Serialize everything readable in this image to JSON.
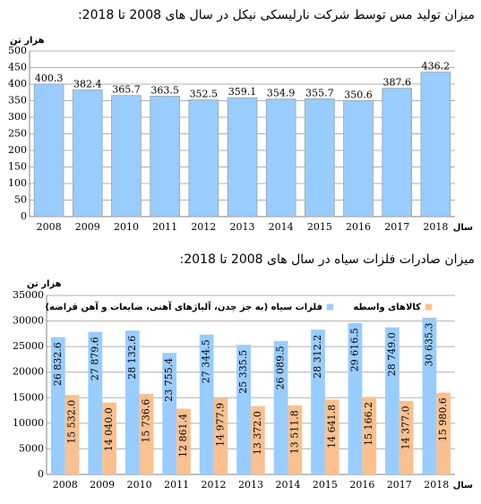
{
  "chart_data": [
    {
      "type": "bar",
      "title": "میزان تولید مس توسط شرکت نارلیسکی نیکل در سال های 2008 تا 2018:",
      "y_label": "هزار تن",
      "x_label": "سال",
      "categories": [
        "2008",
        "2009",
        "2010",
        "2011",
        "2012",
        "2013",
        "2014",
        "2015",
        "2016",
        "2017",
        "2018"
      ],
      "values": [
        400.3,
        382.4,
        365.7,
        363.5,
        352.5,
        359.1,
        354.9,
        355.7,
        350.6,
        387.6,
        436.2
      ],
      "color": "#99ccff",
      "ylim": [
        0,
        500
      ],
      "yticks": [
        0,
        50,
        100,
        150,
        200,
        250,
        300,
        350,
        400,
        450,
        500
      ],
      "grid": true
    },
    {
      "type": "grouped-bar",
      "title": "میزان صادرات فلزات سیاه  در سال های 2008 تا 2018:",
      "y_label": "هزار تن",
      "x_label": "سال",
      "categories": [
        "2008",
        "2009",
        "2010",
        "2011",
        "2012",
        "2013",
        "2014",
        "2015",
        "2016",
        "2017",
        "2018"
      ],
      "series": [
        {
          "name": "فلزات سیاه (به جز چدن، آلیاژهای آهنی، ضایعات و آهن قراضه)",
          "color": "#99ccff",
          "values": [
            26832.6,
            27879.6,
            28132.6,
            23755.4,
            27344.5,
            25335.5,
            26089.5,
            28312.2,
            29616.5,
            28749.0,
            30635.3
          ],
          "value_labels": [
            "26 832.6",
            "27 879.6",
            "28 132.6",
            "23 755.4",
            "27 344.5",
            "25 335.5",
            "26 089.5",
            "28 312.2",
            "29 616.5",
            "28 749.0",
            "30 635.3"
          ]
        },
        {
          "name": "کالاهای واسطه",
          "color": "#fac090",
          "values": [
            15532.0,
            14040.0,
            15736.6,
            12861.4,
            14977.9,
            13372.0,
            13511.8,
            14641.8,
            15166.2,
            14377.0,
            15980.6
          ],
          "value_labels": [
            "15 532.0",
            "14 040.0",
            "15 736.6",
            "12 861.4",
            "14 977.9",
            "13 372.0",
            "13 511.8",
            "14 641.8",
            "15 166.2",
            "14 377.0",
            "15 980.6"
          ]
        }
      ],
      "ylim": [
        0,
        35000
      ],
      "yticks": [
        0,
        5000,
        10000,
        15000,
        20000,
        25000,
        30000,
        35000
      ],
      "grid": true,
      "legend": "top"
    }
  ]
}
